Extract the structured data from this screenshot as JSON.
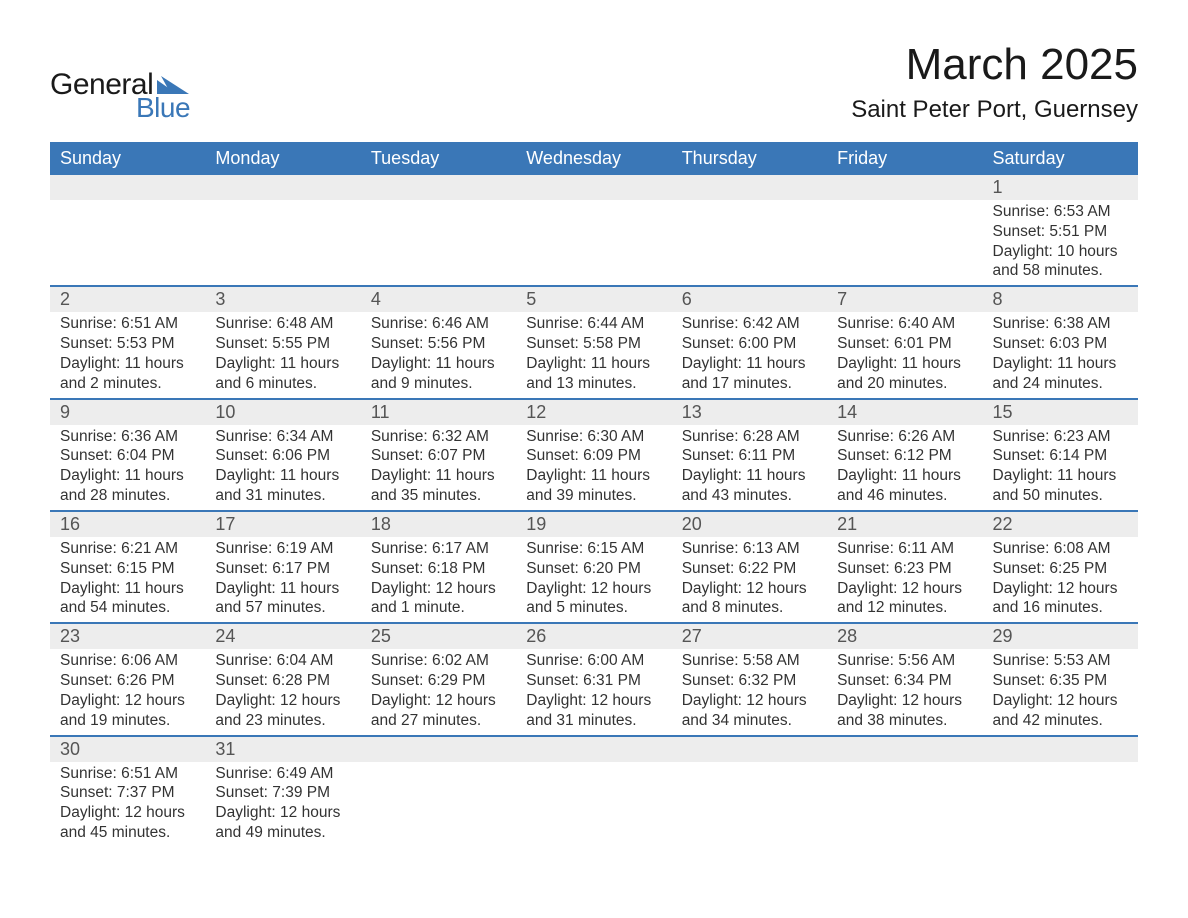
{
  "logo": {
    "text_general": "General",
    "text_blue": "Blue",
    "triangle_color": "#3a77b7"
  },
  "title": "March 2025",
  "location": "Saint Peter Port, Guernsey",
  "colors": {
    "header_bg": "#3a77b7",
    "header_text": "#ffffff",
    "daynum_bg": "#ededed",
    "daynum_text": "#555555",
    "body_text": "#333333",
    "row_divider": "#3a77b7",
    "page_bg": "#ffffff"
  },
  "typography": {
    "title_fontsize": 44,
    "location_fontsize": 24,
    "header_fontsize": 18,
    "daynum_fontsize": 18,
    "cell_fontsize": 15.5,
    "font_family": "Arial"
  },
  "day_headers": [
    "Sunday",
    "Monday",
    "Tuesday",
    "Wednesday",
    "Thursday",
    "Friday",
    "Saturday"
  ],
  "labels": {
    "sunrise": "Sunrise:",
    "sunset": "Sunset:",
    "daylight": "Daylight:"
  },
  "weeks": [
    [
      null,
      null,
      null,
      null,
      null,
      null,
      {
        "n": "1",
        "sr": "6:53 AM",
        "ss": "5:51 PM",
        "dl": "10 hours and 58 minutes."
      }
    ],
    [
      {
        "n": "2",
        "sr": "6:51 AM",
        "ss": "5:53 PM",
        "dl": "11 hours and 2 minutes."
      },
      {
        "n": "3",
        "sr": "6:48 AM",
        "ss": "5:55 PM",
        "dl": "11 hours and 6 minutes."
      },
      {
        "n": "4",
        "sr": "6:46 AM",
        "ss": "5:56 PM",
        "dl": "11 hours and 9 minutes."
      },
      {
        "n": "5",
        "sr": "6:44 AM",
        "ss": "5:58 PM",
        "dl": "11 hours and 13 minutes."
      },
      {
        "n": "6",
        "sr": "6:42 AM",
        "ss": "6:00 PM",
        "dl": "11 hours and 17 minutes."
      },
      {
        "n": "7",
        "sr": "6:40 AM",
        "ss": "6:01 PM",
        "dl": "11 hours and 20 minutes."
      },
      {
        "n": "8",
        "sr": "6:38 AM",
        "ss": "6:03 PM",
        "dl": "11 hours and 24 minutes."
      }
    ],
    [
      {
        "n": "9",
        "sr": "6:36 AM",
        "ss": "6:04 PM",
        "dl": "11 hours and 28 minutes."
      },
      {
        "n": "10",
        "sr": "6:34 AM",
        "ss": "6:06 PM",
        "dl": "11 hours and 31 minutes."
      },
      {
        "n": "11",
        "sr": "6:32 AM",
        "ss": "6:07 PM",
        "dl": "11 hours and 35 minutes."
      },
      {
        "n": "12",
        "sr": "6:30 AM",
        "ss": "6:09 PM",
        "dl": "11 hours and 39 minutes."
      },
      {
        "n": "13",
        "sr": "6:28 AM",
        "ss": "6:11 PM",
        "dl": "11 hours and 43 minutes."
      },
      {
        "n": "14",
        "sr": "6:26 AM",
        "ss": "6:12 PM",
        "dl": "11 hours and 46 minutes."
      },
      {
        "n": "15",
        "sr": "6:23 AM",
        "ss": "6:14 PM",
        "dl": "11 hours and 50 minutes."
      }
    ],
    [
      {
        "n": "16",
        "sr": "6:21 AM",
        "ss": "6:15 PM",
        "dl": "11 hours and 54 minutes."
      },
      {
        "n": "17",
        "sr": "6:19 AM",
        "ss": "6:17 PM",
        "dl": "11 hours and 57 minutes."
      },
      {
        "n": "18",
        "sr": "6:17 AM",
        "ss": "6:18 PM",
        "dl": "12 hours and 1 minute."
      },
      {
        "n": "19",
        "sr": "6:15 AM",
        "ss": "6:20 PM",
        "dl": "12 hours and 5 minutes."
      },
      {
        "n": "20",
        "sr": "6:13 AM",
        "ss": "6:22 PM",
        "dl": "12 hours and 8 minutes."
      },
      {
        "n": "21",
        "sr": "6:11 AM",
        "ss": "6:23 PM",
        "dl": "12 hours and 12 minutes."
      },
      {
        "n": "22",
        "sr": "6:08 AM",
        "ss": "6:25 PM",
        "dl": "12 hours and 16 minutes."
      }
    ],
    [
      {
        "n": "23",
        "sr": "6:06 AM",
        "ss": "6:26 PM",
        "dl": "12 hours and 19 minutes."
      },
      {
        "n": "24",
        "sr": "6:04 AM",
        "ss": "6:28 PM",
        "dl": "12 hours and 23 minutes."
      },
      {
        "n": "25",
        "sr": "6:02 AM",
        "ss": "6:29 PM",
        "dl": "12 hours and 27 minutes."
      },
      {
        "n": "26",
        "sr": "6:00 AM",
        "ss": "6:31 PM",
        "dl": "12 hours and 31 minutes."
      },
      {
        "n": "27",
        "sr": "5:58 AM",
        "ss": "6:32 PM",
        "dl": "12 hours and 34 minutes."
      },
      {
        "n": "28",
        "sr": "5:56 AM",
        "ss": "6:34 PM",
        "dl": "12 hours and 38 minutes."
      },
      {
        "n": "29",
        "sr": "5:53 AM",
        "ss": "6:35 PM",
        "dl": "12 hours and 42 minutes."
      }
    ],
    [
      {
        "n": "30",
        "sr": "6:51 AM",
        "ss": "7:37 PM",
        "dl": "12 hours and 45 minutes."
      },
      {
        "n": "31",
        "sr": "6:49 AM",
        "ss": "7:39 PM",
        "dl": "12 hours and 49 minutes."
      },
      null,
      null,
      null,
      null,
      null
    ]
  ]
}
